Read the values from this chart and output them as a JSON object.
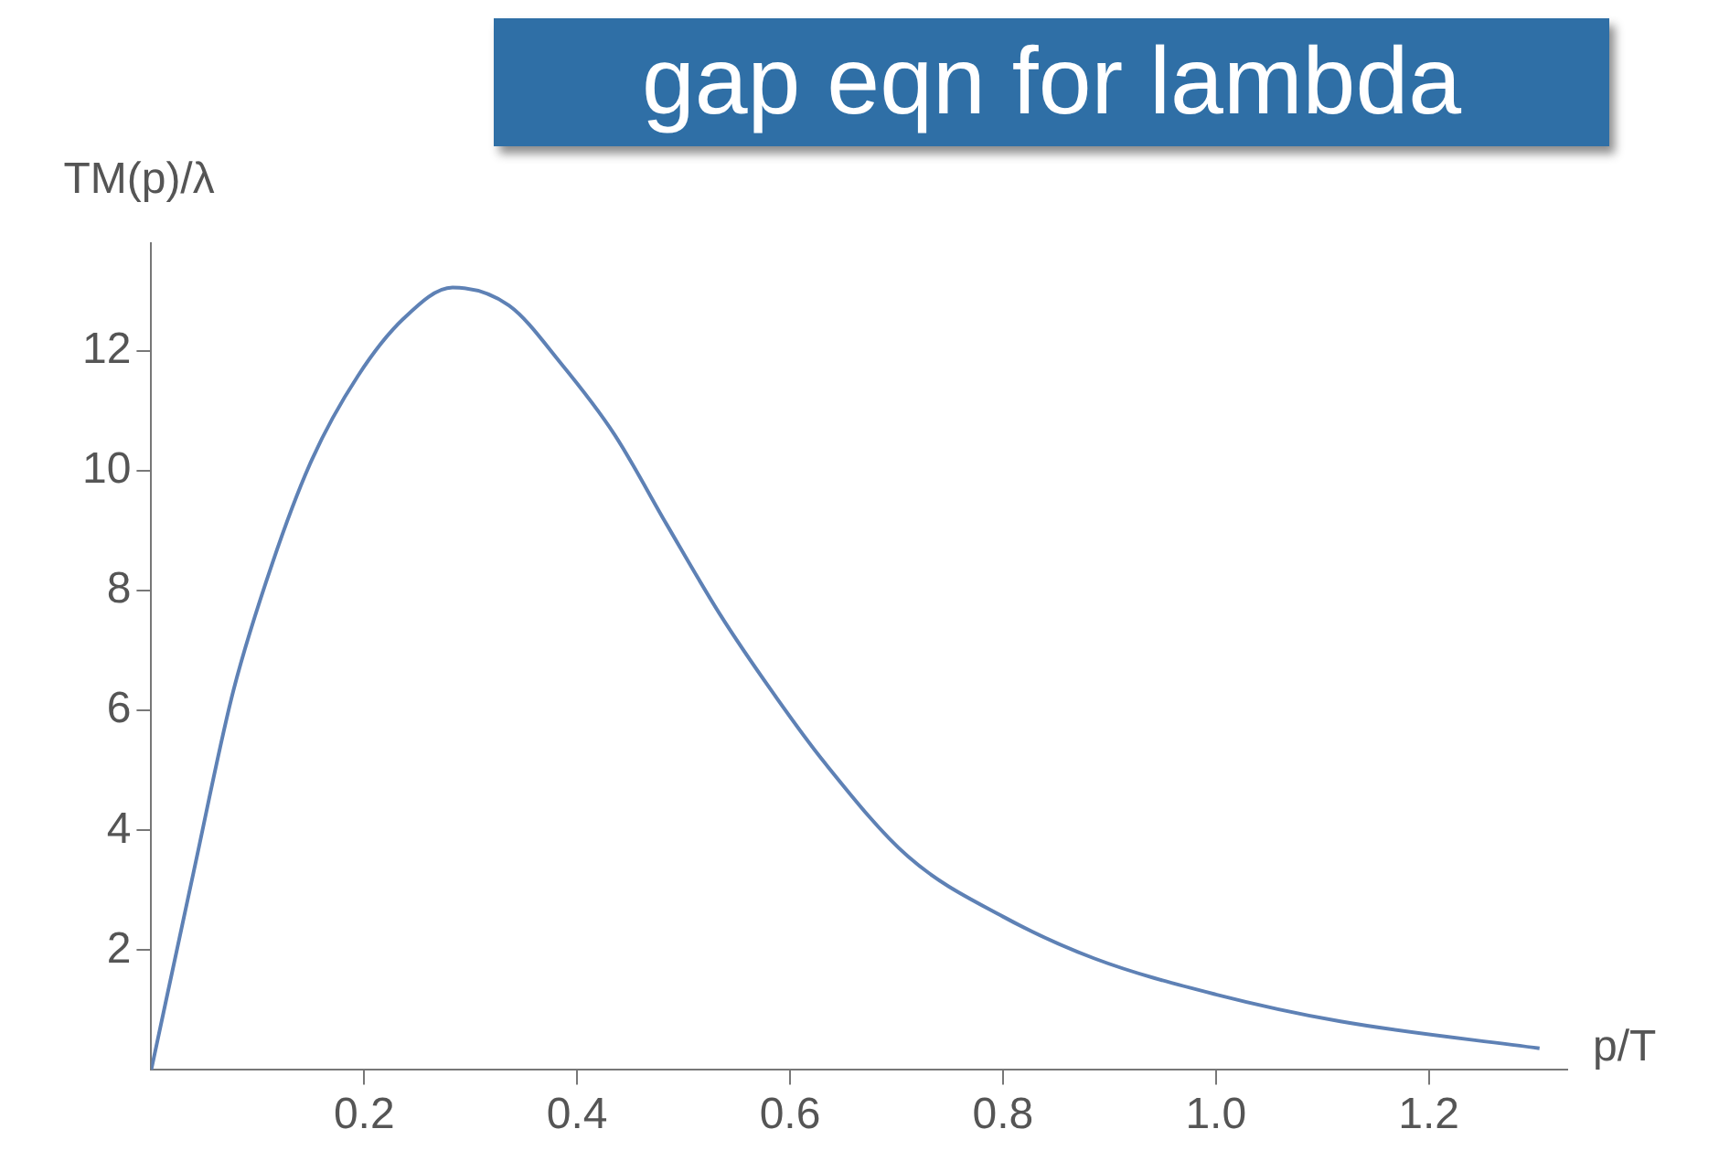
{
  "chart_data": {
    "type": "line",
    "xlabel": "p/T",
    "ylabel": "TM(p)/λ",
    "annotations": [
      "gap eqn for lambda"
    ],
    "series": [
      {
        "color": "#5e81b5",
        "x": [
          0,
          0.04,
          0.077,
          0.114,
          0.151,
          0.194,
          0.237,
          0.283,
          0.336,
          0.385,
          0.435,
          0.484,
          0.534,
          0.583,
          0.632,
          0.711,
          0.8,
          0.886,
          1.0,
          1.117,
          1.304
        ],
        "values": [
          0,
          3.32,
          6.32,
          8.47,
          10.19,
          11.58,
          12.54,
          13.06,
          12.76,
          11.79,
          10.61,
          9.11,
          7.61,
          6.32,
          5.14,
          3.56,
          2.56,
          1.86,
          1.26,
          0.81,
          0.36
        ]
      }
    ],
    "xlim": [
      0,
      1.33
    ],
    "xticks": [
      0.2,
      0.4,
      0.6,
      0.8,
      {
        "value": 1,
        "label": "1.0"
      },
      1.2
    ],
    "ylim": [
      0,
      13.8
    ],
    "yticks": [
      2,
      4,
      6,
      8,
      10,
      12
    ],
    "grid": false,
    "legend": false,
    "marker": "none",
    "line_style": "solid"
  }
}
